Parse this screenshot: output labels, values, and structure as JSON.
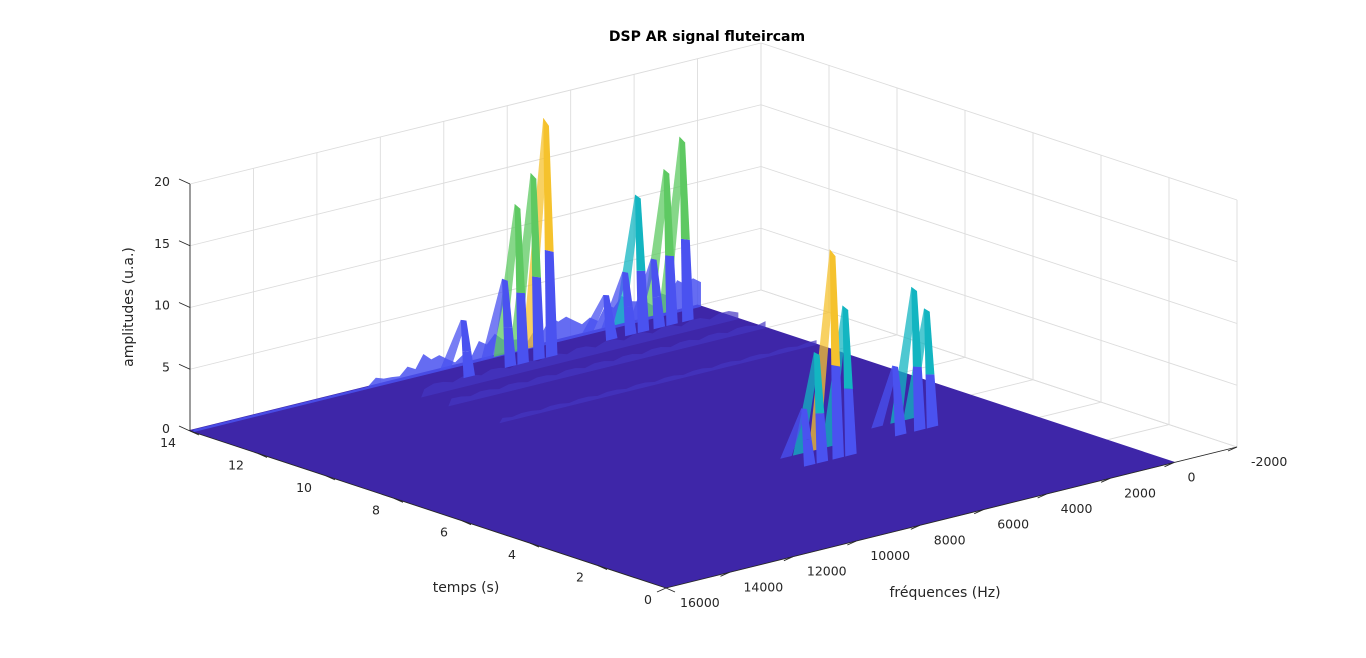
{
  "chart_data": {
    "type": "surface",
    "title": "DSP AR signal fluteircam",
    "xlabel": "temps (s)",
    "ylabel": "fréquences (Hz)",
    "zlabel": "amplitudes (u.a.)",
    "xlim": [
      0,
      14
    ],
    "ylim": [
      -2000,
      16000
    ],
    "zlim": [
      0,
      20
    ],
    "x_ticks": [
      0,
      2,
      4,
      6,
      8,
      10,
      12,
      14
    ],
    "y_ticks": [
      -2000,
      0,
      2000,
      4000,
      6000,
      8000,
      10000,
      12000,
      14000,
      16000
    ],
    "z_ticks": [
      0,
      5,
      10,
      15,
      20
    ],
    "x_tick_labels": [
      "0",
      "2",
      "4",
      "6",
      "8",
      "10",
      "12",
      "14"
    ],
    "y_tick_labels": [
      "-2000",
      "0",
      "2000",
      "4000",
      "6000",
      "8000",
      "10000",
      "12000",
      "14000",
      "16000"
    ],
    "z_tick_labels": [
      "0",
      "5",
      "10",
      "15",
      "20"
    ],
    "grid": true,
    "colormap": "parula",
    "colors": {
      "base": "#3e26a8",
      "low": "#4a52f0",
      "mid": "#13b5c1",
      "green": "#5ec962",
      "high": "#f5c22d"
    },
    "peaks": [
      {
        "x": 13.7,
        "y": 1000,
        "z": 14.8
      },
      {
        "x": 13.7,
        "y": 1500,
        "z": 12.5
      },
      {
        "x": 13.7,
        "y": 1900,
        "z": 5.5
      },
      {
        "x": 13.7,
        "y": 2400,
        "z": 11.0
      },
      {
        "x": 13.7,
        "y": 2800,
        "z": 5.0
      },
      {
        "x": 13.7,
        "y": 3400,
        "z": 3.5
      },
      {
        "x": 13.6,
        "y": 5400,
        "z": 19.2
      },
      {
        "x": 13.6,
        "y": 5800,
        "z": 15.0
      },
      {
        "x": 13.6,
        "y": 6300,
        "z": 12.8
      },
      {
        "x": 13.6,
        "y": 6700,
        "z": 7.0
      },
      {
        "x": 13.6,
        "y": 8000,
        "z": 4.5
      },
      {
        "x": 4.8,
        "y": 5400,
        "z": 12.0
      },
      {
        "x": 4.8,
        "y": 5800,
        "z": 16.8
      },
      {
        "x": 4.8,
        "y": 6300,
        "z": 8.8
      },
      {
        "x": 4.8,
        "y": 6700,
        "z": 4.5
      },
      {
        "x": 5.2,
        "y": 2400,
        "z": 9.5
      },
      {
        "x": 5.2,
        "y": 2800,
        "z": 11.5
      },
      {
        "x": 5.2,
        "y": 3400,
        "z": 5.5
      }
    ]
  }
}
